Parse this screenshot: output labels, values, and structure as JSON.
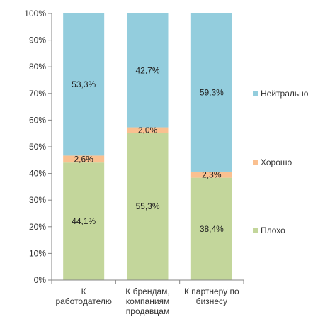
{
  "chart_data": {
    "type": "bar",
    "stacked": true,
    "percent": true,
    "categories": [
      [
        "К",
        "работодателю"
      ],
      [
        "К брендам,",
        "компаниям",
        "продавцам"
      ],
      [
        "К партнеру по",
        "бизнесу"
      ]
    ],
    "series": [
      {
        "name": "Плохо",
        "color": "#c3d69b",
        "values": [
          44.1,
          55.3,
          38.4
        ],
        "labels": [
          "44,1%",
          "55,3%",
          "38,4%"
        ]
      },
      {
        "name": "Хорошо",
        "color": "#fac090",
        "values": [
          2.6,
          2.0,
          2.3
        ],
        "labels": [
          "2,6%",
          "2,0%",
          "2,3%"
        ]
      },
      {
        "name": "Нейтрально",
        "color": "#93cddd",
        "values": [
          53.3,
          42.7,
          59.3
        ],
        "labels": [
          "53,3%",
          "42,7%",
          "59,3%"
        ]
      }
    ],
    "yticks": [
      "0%",
      "10%",
      "20%",
      "30%",
      "40%",
      "50%",
      "60%",
      "70%",
      "80%",
      "90%",
      "100%"
    ],
    "ylim": [
      0,
      100
    ],
    "grid": false,
    "legend_position": "right"
  }
}
